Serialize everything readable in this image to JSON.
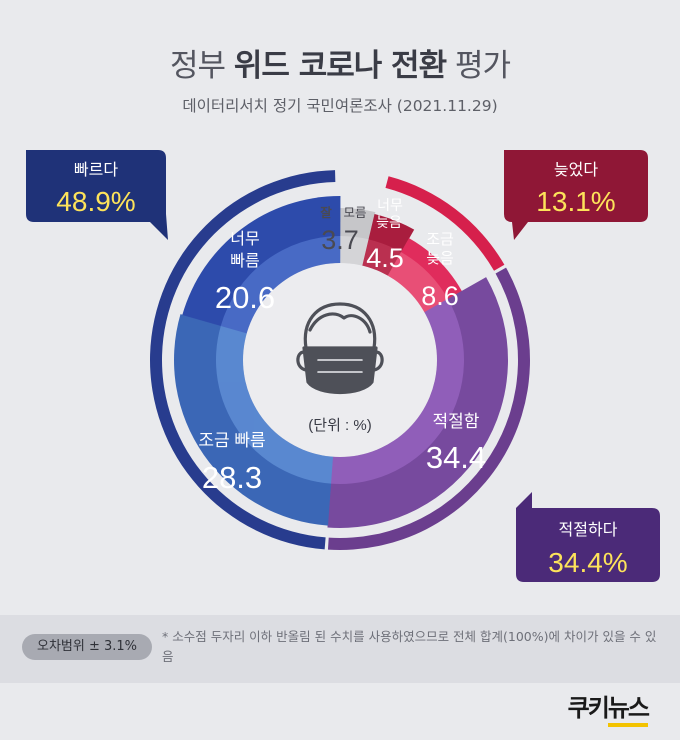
{
  "header": {
    "title_pre": "정부 ",
    "title_bold": "위드 코로나 전환",
    "title_post": " 평가",
    "subtitle": "데이터리서치 정기 국민여론조사 (2021.11.29)"
  },
  "colors": {
    "fast_outer": "#283c8e",
    "late_outer": "#d6204c",
    "appropriate_outer": "#6b3e8e",
    "very_fast": "#2d4bab",
    "somewhat_fast": "#3b67b6",
    "dont_know": "#c6c6c9",
    "very_late": "#a91d3e",
    "somewhat_late": "#e02c5c",
    "appropriate": "#774a9e",
    "box_fast": "#1f3278",
    "box_late": "#8f1736",
    "box_appropriate": "#4b2a78",
    "percent_text": "#fde35a"
  },
  "chart_data": {
    "type": "pie",
    "unit_note": "(단위 : %)",
    "inner_slices": [
      {
        "key": "dont_know",
        "label": "잘 모름",
        "value": 3.7
      },
      {
        "key": "very_late",
        "label": "너무 늦음",
        "value": 4.5
      },
      {
        "key": "somewhat_late",
        "label": "조금 늦음",
        "value": 8.6
      },
      {
        "key": "appropriate",
        "label": "적절함",
        "value": 34.4
      },
      {
        "key": "somewhat_fast",
        "label": "조금 빠름",
        "value": 28.3
      },
      {
        "key": "very_fast",
        "label": "너무 빠름",
        "value": 20.6
      }
    ],
    "summary": [
      {
        "key": "late",
        "label": "늦었다",
        "value": 13.1,
        "display": "13.1%"
      },
      {
        "key": "appropriate",
        "label": "적절하다",
        "value": 34.4,
        "display": "34.4%"
      },
      {
        "key": "fast",
        "label": "빠르다",
        "value": 48.9,
        "display": "48.9%"
      }
    ]
  },
  "labels": {
    "dont_know_a": "잘",
    "dont_know_b": "모름",
    "dont_know_value": "3.7",
    "very_late_a": "너무",
    "very_late_b": "늦음",
    "very_late_value": "4.5",
    "somewhat_late_a": "조금",
    "somewhat_late_b": "늦음",
    "somewhat_late_value": "8.6",
    "appropriate_label": "적절함",
    "appropriate_value": "34.4",
    "somewhat_fast_label": "조금 빠름",
    "somewhat_fast_value": "28.3",
    "very_fast_a": "너무",
    "very_fast_b": "빠름",
    "very_fast_value": "20.6"
  },
  "boxes": {
    "fast_label": "빠르다",
    "fast_value": "48.9%",
    "late_label": "늦었다",
    "late_value": "13.1%",
    "appropriate_label": "적절하다",
    "appropriate_value": "34.4%"
  },
  "footer": {
    "margin_of_error": "오차범위 ± 3.1%",
    "note": "* 소수점 두자리 이하 반올림 된 수치를 사용하였으므로 전체 합계(100%)에 차이가 있을 수 있음"
  },
  "logo": {
    "part1": "쿠키",
    "part2": "뉴스"
  }
}
